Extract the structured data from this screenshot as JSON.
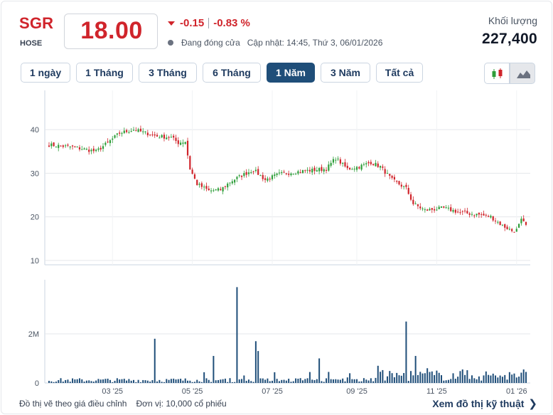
{
  "header": {
    "ticker": "SGR",
    "exchange": "HOSE",
    "price": "18.00",
    "change": "-0.15",
    "change_pct": "-0.83 %",
    "status": "Đang đóng cửa",
    "updated": "Cập nhật: 14:45, Thứ 3, 06/01/2026",
    "volume_label": "Khối lượng",
    "volume": "227,400"
  },
  "tabs": [
    {
      "label": "1 ngày",
      "active": false
    },
    {
      "label": "1 Tháng",
      "active": false
    },
    {
      "label": "3 Tháng",
      "active": false
    },
    {
      "label": "6 Tháng",
      "active": false
    },
    {
      "label": "1 Năm",
      "active": true
    },
    {
      "label": "3 Năm",
      "active": false
    },
    {
      "label": "Tất cả",
      "active": false
    }
  ],
  "chart_type_buttons": [
    {
      "icon": "candlestick-icon",
      "active": false
    },
    {
      "icon": "area-chart-icon",
      "active": true
    }
  ],
  "colors": {
    "up": "#2e9e3a",
    "down": "#d0242b",
    "volume": "#1f4e79",
    "grid": "#e5e7eb",
    "accent": "#1f4e79"
  },
  "footer": {
    "note": "Đồ thị vẽ theo giá điều chỉnh",
    "unit": "Đơn vị: 10,000 cổ phiếu",
    "link": "Xem đồ thị kỹ thuật"
  },
  "chart_data": [
    {
      "type": "candlestick",
      "x_ticks": [
        "03 '25",
        "05 '25",
        "07 '25",
        "09 '25",
        "11 '25",
        "01 '26"
      ],
      "y_ticks": [
        10,
        20,
        30,
        40
      ],
      "ylim": [
        9,
        49
      ],
      "grid": true,
      "anchors": [
        {
          "x": 0,
          "y": 36.5
        },
        {
          "x": 10,
          "y": 36.0
        },
        {
          "x": 20,
          "y": 35.0
        },
        {
          "x": 25,
          "y": 37.0
        },
        {
          "x": 30,
          "y": 39.2
        },
        {
          "x": 36,
          "y": 40.0
        },
        {
          "x": 46,
          "y": 38.5
        },
        {
          "x": 52,
          "y": 38.2
        },
        {
          "x": 55,
          "y": 37.0
        },
        {
          "x": 58,
          "y": 37.3
        },
        {
          "x": 60,
          "y": 31.0
        },
        {
          "x": 63,
          "y": 27.5
        },
        {
          "x": 68,
          "y": 26.0
        },
        {
          "x": 73,
          "y": 26.2
        },
        {
          "x": 77,
          "y": 28.0
        },
        {
          "x": 82,
          "y": 29.5
        },
        {
          "x": 87,
          "y": 30.8
        },
        {
          "x": 92,
          "y": 28.5
        },
        {
          "x": 98,
          "y": 29.8
        },
        {
          "x": 108,
          "y": 30.5
        },
        {
          "x": 118,
          "y": 31.0
        },
        {
          "x": 122,
          "y": 33.5
        },
        {
          "x": 127,
          "y": 31.0
        },
        {
          "x": 132,
          "y": 31.5
        },
        {
          "x": 137,
          "y": 32.5
        },
        {
          "x": 141,
          "y": 31.5
        },
        {
          "x": 146,
          "y": 28.5
        },
        {
          "x": 152,
          "y": 26.5
        },
        {
          "x": 155,
          "y": 23.0
        },
        {
          "x": 160,
          "y": 21.5
        },
        {
          "x": 168,
          "y": 22.0
        },
        {
          "x": 175,
          "y": 21.0
        },
        {
          "x": 183,
          "y": 20.5
        },
        {
          "x": 188,
          "y": 20.0
        },
        {
          "x": 193,
          "y": 18.0
        },
        {
          "x": 197,
          "y": 16.8
        },
        {
          "x": 199,
          "y": 17.0
        },
        {
          "x": 201,
          "y": 19.2
        },
        {
          "x": 203,
          "y": 18.0
        }
      ],
      "note": "Daily candles for one year; prices traced from the anchor path above (values in VND thousands)."
    },
    {
      "type": "bar",
      "title": "",
      "y_ticks": [
        "0",
        "2M"
      ],
      "ylim": [
        0,
        4200000
      ],
      "spikes": [
        {
          "x": 45,
          "value": 1800000
        },
        {
          "x": 80,
          "value": 3900000
        },
        {
          "x": 88,
          "value": 1700000
        },
        {
          "x": 89,
          "value": 1300000
        },
        {
          "x": 70,
          "value": 1100000
        },
        {
          "x": 115,
          "value": 1000000
        },
        {
          "x": 140,
          "value": 700000
        },
        {
          "x": 152,
          "value": 2500000
        },
        {
          "x": 156,
          "value": 1100000
        },
        {
          "x": 161,
          "value": 600000
        },
        {
          "x": 176,
          "value": 550000
        },
        {
          "x": 202,
          "value": 550000
        }
      ]
    }
  ]
}
